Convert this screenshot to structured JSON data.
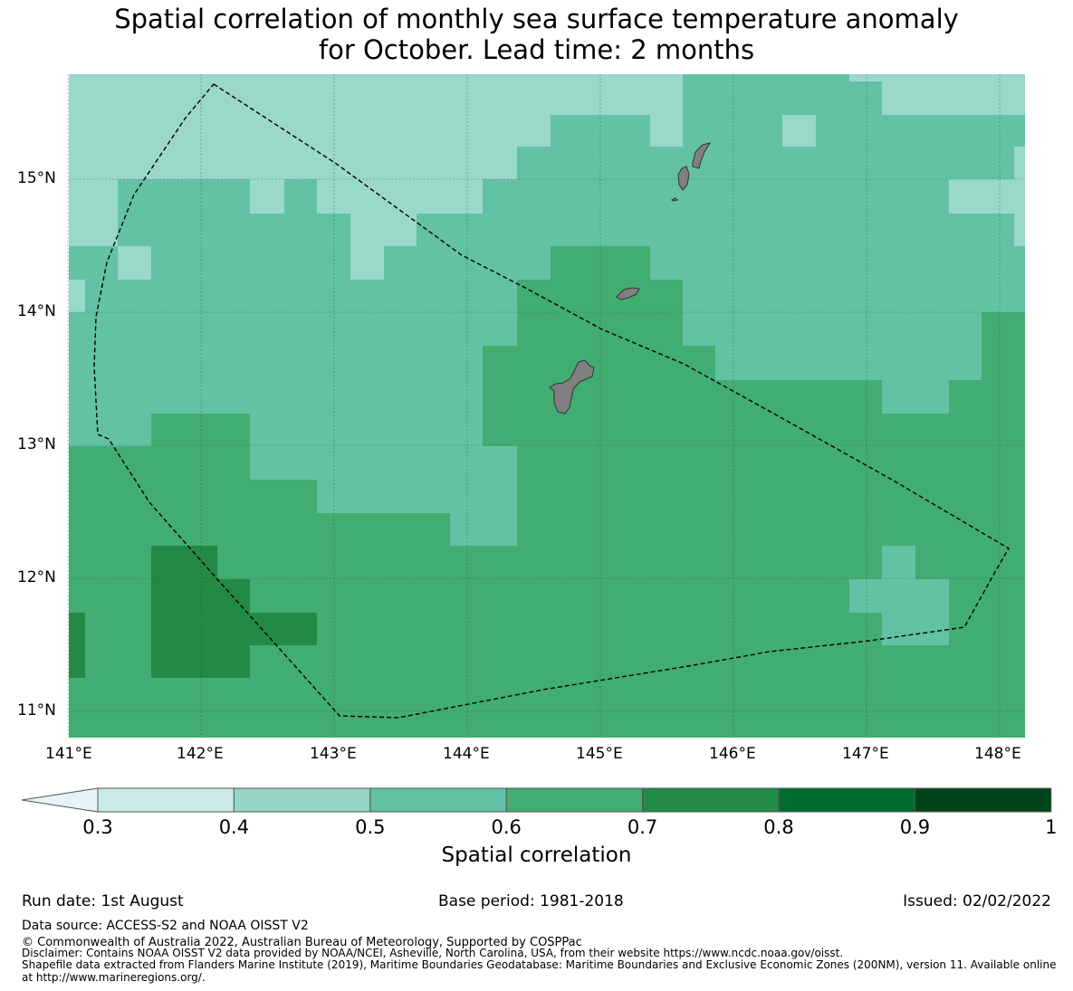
{
  "title": {
    "line1": "Spatial correlation of monthly sea surface temperature anomaly",
    "line2": "for October. Lead time: 2 months"
  },
  "map": {
    "lon_range": [
      141.0,
      148.2
    ],
    "lat_range": [
      10.8,
      15.8
    ],
    "x_ticks": [
      {
        "value": 141,
        "label": "141°E"
      },
      {
        "value": 142,
        "label": "142°E"
      },
      {
        "value": 143,
        "label": "143°E"
      },
      {
        "value": 144,
        "label": "144°E"
      },
      {
        "value": 145,
        "label": "145°E"
      },
      {
        "value": 146,
        "label": "146°E"
      },
      {
        "value": 147,
        "label": "147°E"
      },
      {
        "value": 148,
        "label": "148°E"
      }
    ],
    "y_ticks": [
      {
        "value": 15,
        "label": "15°N"
      },
      {
        "value": 14,
        "label": "14°N"
      },
      {
        "value": 13,
        "label": "13°N"
      },
      {
        "value": 12,
        "label": "12°N"
      },
      {
        "value": 11,
        "label": "11°N"
      }
    ],
    "grid": true,
    "land_color": "#808080",
    "eez_boundary_style": "dashed"
  },
  "colorbar": {
    "label": "Spatial correlation",
    "ticks": [
      "0.3",
      "0.4",
      "0.5",
      "0.6",
      "0.7",
      "0.8",
      "0.9",
      "1"
    ],
    "extend_color": "#e5f4f7",
    "colors": [
      "#c9ebe3",
      "#97d6c6",
      "#63c2a4",
      "#41ad73",
      "#238a45",
      "#006d2f",
      "#00441b"
    ]
  },
  "footer": {
    "run_date": "Run date: 1st August",
    "base_period": "Base period: 1981-2018",
    "issued": "Issued: 02/02/2022",
    "data_source": "Data source: ACCESS-S2 and NOAA OISST V2",
    "copyright": "© Commonwealth of Australia 2022, Australian Bureau of Meteorology, Supported by COSPPac",
    "disclaimer": "Disclaimer: Contains NOAA OISST V2 data provided by NOAA/NCEI, Asheville, North Carolina, USA, from their website https://www.ncdc.noaa.gov/oisst.",
    "shapefile_1": "Shapefile data extracted from Flanders Marine Institute (2019), Maritime Boundaries Geodatabase: Maritime Boundaries and Exclusive Economic Zones (200NM), version 11. Available online",
    "shapefile_2": "at http://www.marineregions.org/."
  }
}
